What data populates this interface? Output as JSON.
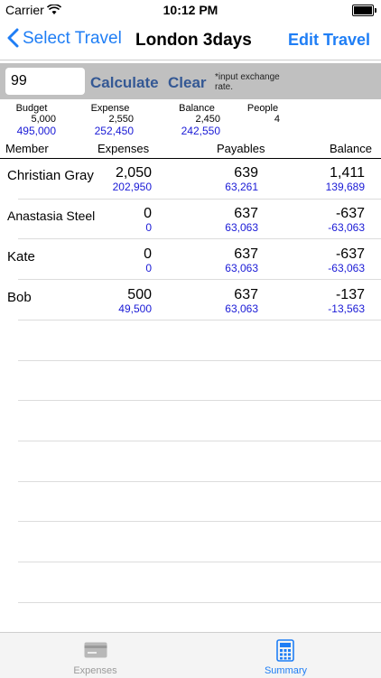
{
  "status": {
    "carrier": "Carrier",
    "time": "10:12 PM"
  },
  "nav": {
    "back_label": "Select Travel",
    "title": "London 3days",
    "edit_label": "Edit Travel"
  },
  "toolbar": {
    "rate_value": "99",
    "calculate_label": "Calculate",
    "clear_label": "Clear",
    "hint": "*input exchange rate."
  },
  "summary": {
    "budget": {
      "label": "Budget",
      "value": "5,000",
      "converted": "495,000"
    },
    "expense": {
      "label": "Expense",
      "value": "2,550",
      "converted": "252,450"
    },
    "balance": {
      "label": "Balance",
      "value": "2,450",
      "converted": "242,550"
    },
    "people": {
      "label": "People",
      "value": "4"
    }
  },
  "table": {
    "headers": {
      "member": "Member",
      "expenses": "Expenses",
      "payables": "Payables",
      "balance": "Balance"
    },
    "rows": [
      {
        "name": "Christian Gray",
        "expenses": "2,050",
        "expenses_conv": "202,950",
        "payables": "639",
        "payables_conv": "63,261",
        "balance": "1,411",
        "balance_conv": "139,689"
      },
      {
        "name": "Anastasia Steel",
        "expenses": "0",
        "expenses_conv": "0",
        "payables": "637",
        "payables_conv": "63,063",
        "balance": "-637",
        "balance_conv": "-63,063"
      },
      {
        "name": "Kate",
        "expenses": "0",
        "expenses_conv": "0",
        "payables": "637",
        "payables_conv": "63,063",
        "balance": "-637",
        "balance_conv": "-63,063"
      },
      {
        "name": "Bob",
        "expenses": "500",
        "expenses_conv": "49,500",
        "payables": "637",
        "payables_conv": "63,063",
        "balance": "-137",
        "balance_conv": "-13,563"
      }
    ]
  },
  "tabs": [
    {
      "label": "Expenses",
      "icon": "credit-card-icon",
      "active": false
    },
    {
      "label": "Summary",
      "icon": "calculator-icon",
      "active": true
    }
  ],
  "colors": {
    "accent": "#1f7ef5",
    "button_text": "#345894",
    "converted_text": "#1a1ad6",
    "toolbar_bg": "#c0c0c0",
    "tab_inactive": "#9a9a9a"
  }
}
